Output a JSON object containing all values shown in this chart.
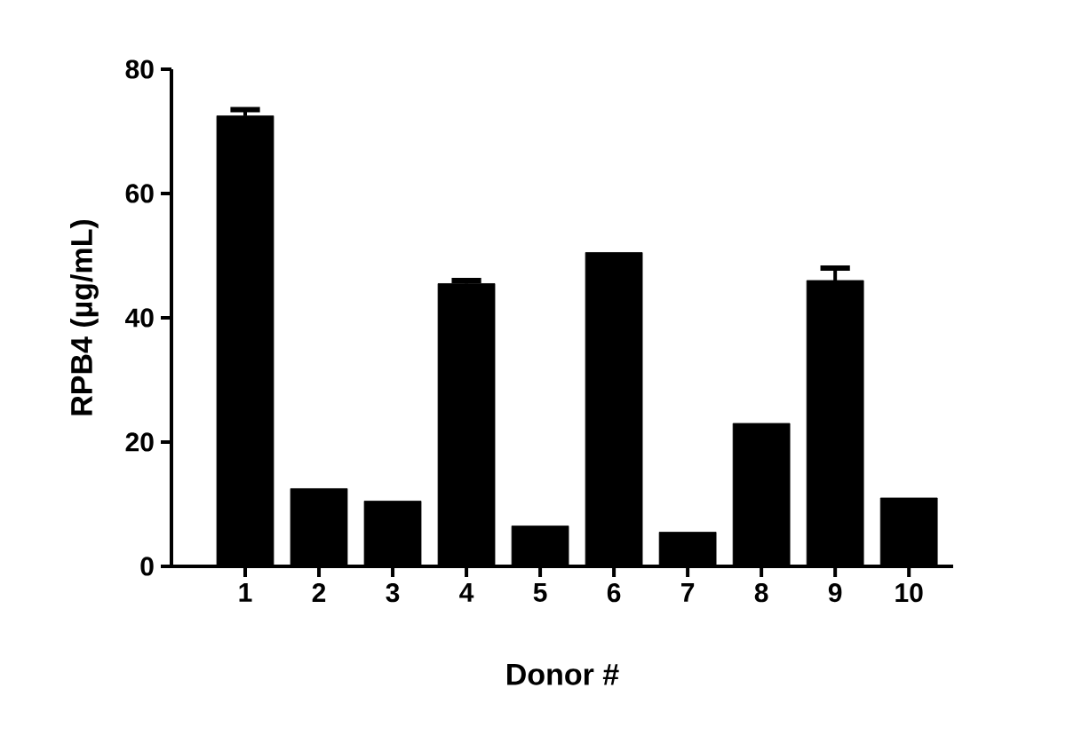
{
  "chart_data": {
    "type": "bar",
    "xlabel": "Donor #",
    "ylabel": "RPB4 (µg/mL)",
    "categories": [
      "1",
      "2",
      "3",
      "4",
      "5",
      "6",
      "7",
      "8",
      "9",
      "10"
    ],
    "values": [
      72.5,
      12.5,
      10.5,
      45.5,
      6.5,
      50.5,
      5.5,
      23,
      46,
      11
    ],
    "errors": [
      1,
      null,
      null,
      0.5,
      null,
      null,
      null,
      null,
      2,
      null
    ],
    "color": "#000000",
    "ylim": [
      0,
      80
    ],
    "yticks": [
      0,
      20,
      40,
      60,
      80
    ],
    "grid": false
  }
}
